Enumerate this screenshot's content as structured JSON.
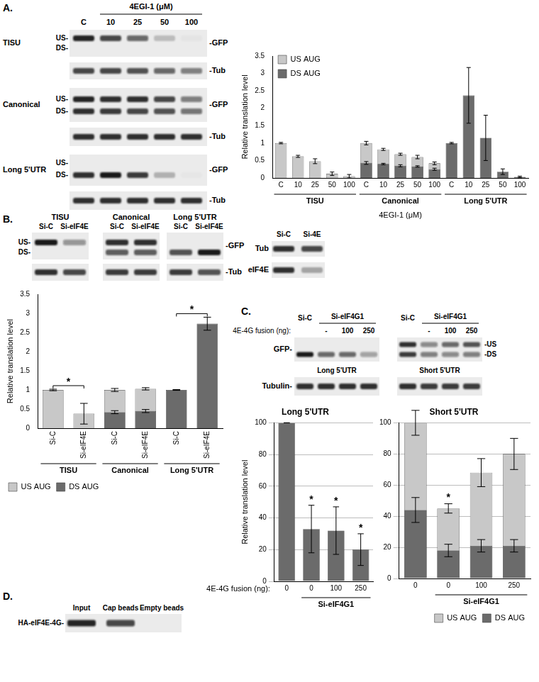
{
  "panels": {
    "A": {
      "label": "A.",
      "header": "4EGI-1 (μM)",
      "lanes": [
        "C",
        "10",
        "25",
        "50",
        "100"
      ],
      "groups": [
        {
          "name": "TISU",
          "marks": [
            "US-",
            "DS-"
          ],
          "gfp_label": "-GFP",
          "US": [
            0.9,
            0.75,
            0.6,
            0.2,
            0.03
          ],
          "DS": null,
          "tub_label": "-Tub",
          "tub": [
            0.75,
            0.75,
            0.7,
            0.6,
            0.5
          ]
        },
        {
          "name": "Canonical",
          "marks": [
            "US-",
            "DS-"
          ],
          "gfp_label": "-GFP",
          "US": [
            0.9,
            0.85,
            0.85,
            0.75,
            0.5
          ],
          "DS": [
            0.85,
            0.8,
            0.75,
            0.7,
            0.55
          ],
          "tub_label": "-Tub",
          "tub": [
            0.85,
            0.85,
            0.85,
            0.85,
            0.85
          ]
        },
        {
          "name": "Long 5'UTR",
          "marks": [
            "US-",
            "DS-"
          ],
          "gfp_label": "-GFP",
          "US": null,
          "DS": [
            0.85,
            0.95,
            0.8,
            0.25,
            0.02
          ],
          "tub_label": "-Tub",
          "tub": [
            0.85,
            0.85,
            0.85,
            0.85,
            0.85
          ]
        }
      ]
    },
    "B": {
      "label": "B.",
      "marks": [
        "US-",
        "DS-"
      ],
      "gfp_label": "-GFP",
      "tub_label": "-Tub",
      "groups": [
        {
          "name": "TISU",
          "lanes": [
            "Si-C",
            "Si-eIF4E"
          ],
          "US": [
            0.95,
            0.4
          ],
          "DS": null,
          "tub": [
            0.85,
            0.75
          ]
        },
        {
          "name": "Canonical",
          "lanes": [
            "Si-C",
            "Si-eIF4E"
          ],
          "US": [
            0.85,
            0.85
          ],
          "DS": [
            0.65,
            0.65
          ],
          "tub": [
            0.8,
            0.8
          ]
        },
        {
          "name": "Long 5'UTR",
          "lanes": [
            "Si-C",
            "Si-eIF4E"
          ],
          "US": null,
          "DS": [
            0.7,
            0.95
          ],
          "tub": [
            0.8,
            0.7
          ]
        }
      ],
      "knockdown": {
        "lanes": [
          "Si-C",
          "Si-4E"
        ],
        "rows": [
          {
            "label": "Tub",
            "bands": [
              0.85,
              0.75
            ]
          },
          {
            "label": "eIF4E",
            "bands": [
              0.85,
              0.3
            ]
          }
        ]
      }
    },
    "C": {
      "label": "C.",
      "row_label": "4E-4G fusion (ng):",
      "gfp_label": "GFP-",
      "marks": [
        "-US",
        "-DS"
      ],
      "tub_label": "Tubulin-",
      "groups": [
        {
          "name": "Long 5'UTR",
          "header": [
            "Si-C",
            "Si-eIF4G1"
          ],
          "lanes": [
            null,
            "-",
            "100",
            "250"
          ],
          "US": null,
          "DS": [
            0.95,
            0.6,
            0.6,
            0.35
          ],
          "tub": [
            0.85,
            0.85,
            0.85,
            0.85
          ]
        },
        {
          "name": "Short 5'UTR",
          "header": [
            "Si-C",
            "Si-eIF4G1"
          ],
          "lanes": [
            null,
            "-",
            "100",
            "250"
          ],
          "US": [
            0.85,
            0.45,
            0.6,
            0.7
          ],
          "DS": [
            0.8,
            0.5,
            0.45,
            0.5
          ],
          "tub": [
            0.85,
            0.8,
            0.8,
            0.8
          ]
        }
      ]
    },
    "D": {
      "label": "D.",
      "lanes": [
        "Input",
        "Cap beads",
        "Empty beads"
      ],
      "row_label": "HA-eIF4E-4G-",
      "bands": [
        0.9,
        0.75,
        0
      ]
    }
  },
  "chart_data": [
    {
      "type": "bar",
      "categories": [
        "C",
        "10",
        "25",
        "50",
        "100",
        "C",
        "10",
        "25",
        "50",
        "100",
        "C",
        "10",
        "25",
        "50",
        "100"
      ],
      "groups": [
        {
          "name": "TISU",
          "categories": [
            0,
            1,
            2,
            3,
            4
          ]
        },
        {
          "name": "Canonical",
          "categories": [
            5,
            6,
            7,
            8,
            9
          ]
        },
        {
          "name": "Long 5'UTR",
          "categories": [
            10,
            11,
            12,
            13,
            14
          ]
        }
      ],
      "x_label": "4EGI-1 (μM)",
      "y_label": "Relative translation level",
      "ylim": [
        0,
        3.5
      ],
      "yticks": [
        0,
        0.5,
        1,
        1.5,
        2,
        2.5,
        3,
        3.5
      ],
      "grid": false,
      "legend": "upper left",
      "series": [
        {
          "name": "US AUG",
          "color": "#c8c8c8",
          "values": [
            1,
            0.62,
            0.48,
            0.12,
            0.05,
            1,
            0.82,
            0.68,
            0.6,
            0.42,
            null,
            null,
            null,
            null,
            null
          ],
          "errors": [
            0.02,
            0.03,
            0.07,
            0.05,
            0.05,
            0.05,
            0.03,
            0.03,
            0.05,
            0.04,
            null,
            null,
            null,
            null,
            null
          ]
        },
        {
          "name": "DS AUG",
          "color": "#6b6b6b",
          "values": [
            null,
            null,
            null,
            null,
            null,
            0.43,
            0.4,
            0.35,
            0.33,
            0.25,
            1,
            2.37,
            1.15,
            0.18,
            0.03
          ],
          "errors": [
            null,
            null,
            null,
            null,
            null,
            0.04,
            0.02,
            0.03,
            0.02,
            0.03,
            0.02,
            0.8,
            0.65,
            0.08,
            0.02
          ]
        }
      ]
    },
    {
      "type": "bar",
      "categories": [
        "Si-C",
        "Si-eIF4E",
        "Si-C",
        "Si-eIF4E",
        "Si-C",
        "Si-eIF4E"
      ],
      "groups": [
        {
          "name": "TISU",
          "categories": [
            0,
            1
          ]
        },
        {
          "name": "Canonical",
          "categories": [
            2,
            3
          ]
        },
        {
          "name": "Long 5'UTR",
          "categories": [
            4,
            5
          ]
        }
      ],
      "y_label": "Relative translation level",
      "ylim": [
        0,
        3.5
      ],
      "yticks": [
        0,
        0.5,
        1,
        1.5,
        2,
        2.5,
        3,
        3.5
      ],
      "grid": false,
      "legend": "lower left",
      "series": [
        {
          "name": "US AUG",
          "color": "#c8c8c8",
          "values": [
            1,
            0.38,
            1,
            1.03,
            null,
            null
          ],
          "errors": [
            0.02,
            0.27,
            0.04,
            0.03,
            null,
            null
          ]
        },
        {
          "name": "DS AUG",
          "color": "#6b6b6b",
          "values": [
            null,
            null,
            0.42,
            0.45,
            1,
            2.73
          ],
          "errors": [
            null,
            null,
            0.04,
            0.04,
            0.01,
            0.17
          ]
        }
      ],
      "annotations": [
        {
          "text": "*",
          "categories": [
            0,
            1
          ]
        },
        {
          "text": "*",
          "categories": [
            4,
            5
          ]
        }
      ]
    },
    {
      "type": "bar",
      "title": "Long 5'UTR",
      "categories": [
        "0",
        "0",
        "100",
        "250"
      ],
      "groups": [
        {
          "name": "Si-eIF4G1",
          "categories": [
            1,
            2,
            3
          ]
        }
      ],
      "x_label": "4E-4G fusion (ng):",
      "y_label": "Relative translation level",
      "ylim": [
        0,
        100
      ],
      "yticks": [
        0,
        20,
        40,
        60,
        80,
        100
      ],
      "grid": true,
      "series": [
        {
          "color": "#6b6b6b",
          "values": [
            100,
            33,
            32,
            20
          ],
          "errors": [
            0,
            15,
            15,
            10
          ]
        }
      ],
      "annotations": [
        {
          "text": "*",
          "categories": [
            1
          ]
        },
        {
          "text": "*",
          "categories": [
            2
          ]
        },
        {
          "text": "*",
          "categories": [
            3
          ]
        }
      ]
    },
    {
      "type": "bar",
      "title": "Short 5'UTR",
      "categories": [
        "0",
        "0",
        "100",
        "250"
      ],
      "groups": [
        {
          "name": "Si-eIF4G1",
          "categories": [
            1,
            2,
            3
          ]
        }
      ],
      "ylim": [
        0,
        100
      ],
      "yticks": [
        0,
        20,
        40,
        60,
        80,
        100
      ],
      "grid": true,
      "legend": "lower right",
      "series": [
        {
          "name": "US AUG",
          "color": "#c8c8c8",
          "values": [
            100,
            45,
            68,
            80
          ],
          "errors": [
            8,
            3,
            9,
            10
          ]
        },
        {
          "name": "DS AUG",
          "color": "#6b6b6b",
          "values": [
            44,
            18,
            21,
            21
          ],
          "errors": [
            8,
            4,
            4,
            4
          ]
        }
      ],
      "annotations": [
        {
          "text": "*",
          "categories": [
            1
          ]
        }
      ]
    }
  ]
}
